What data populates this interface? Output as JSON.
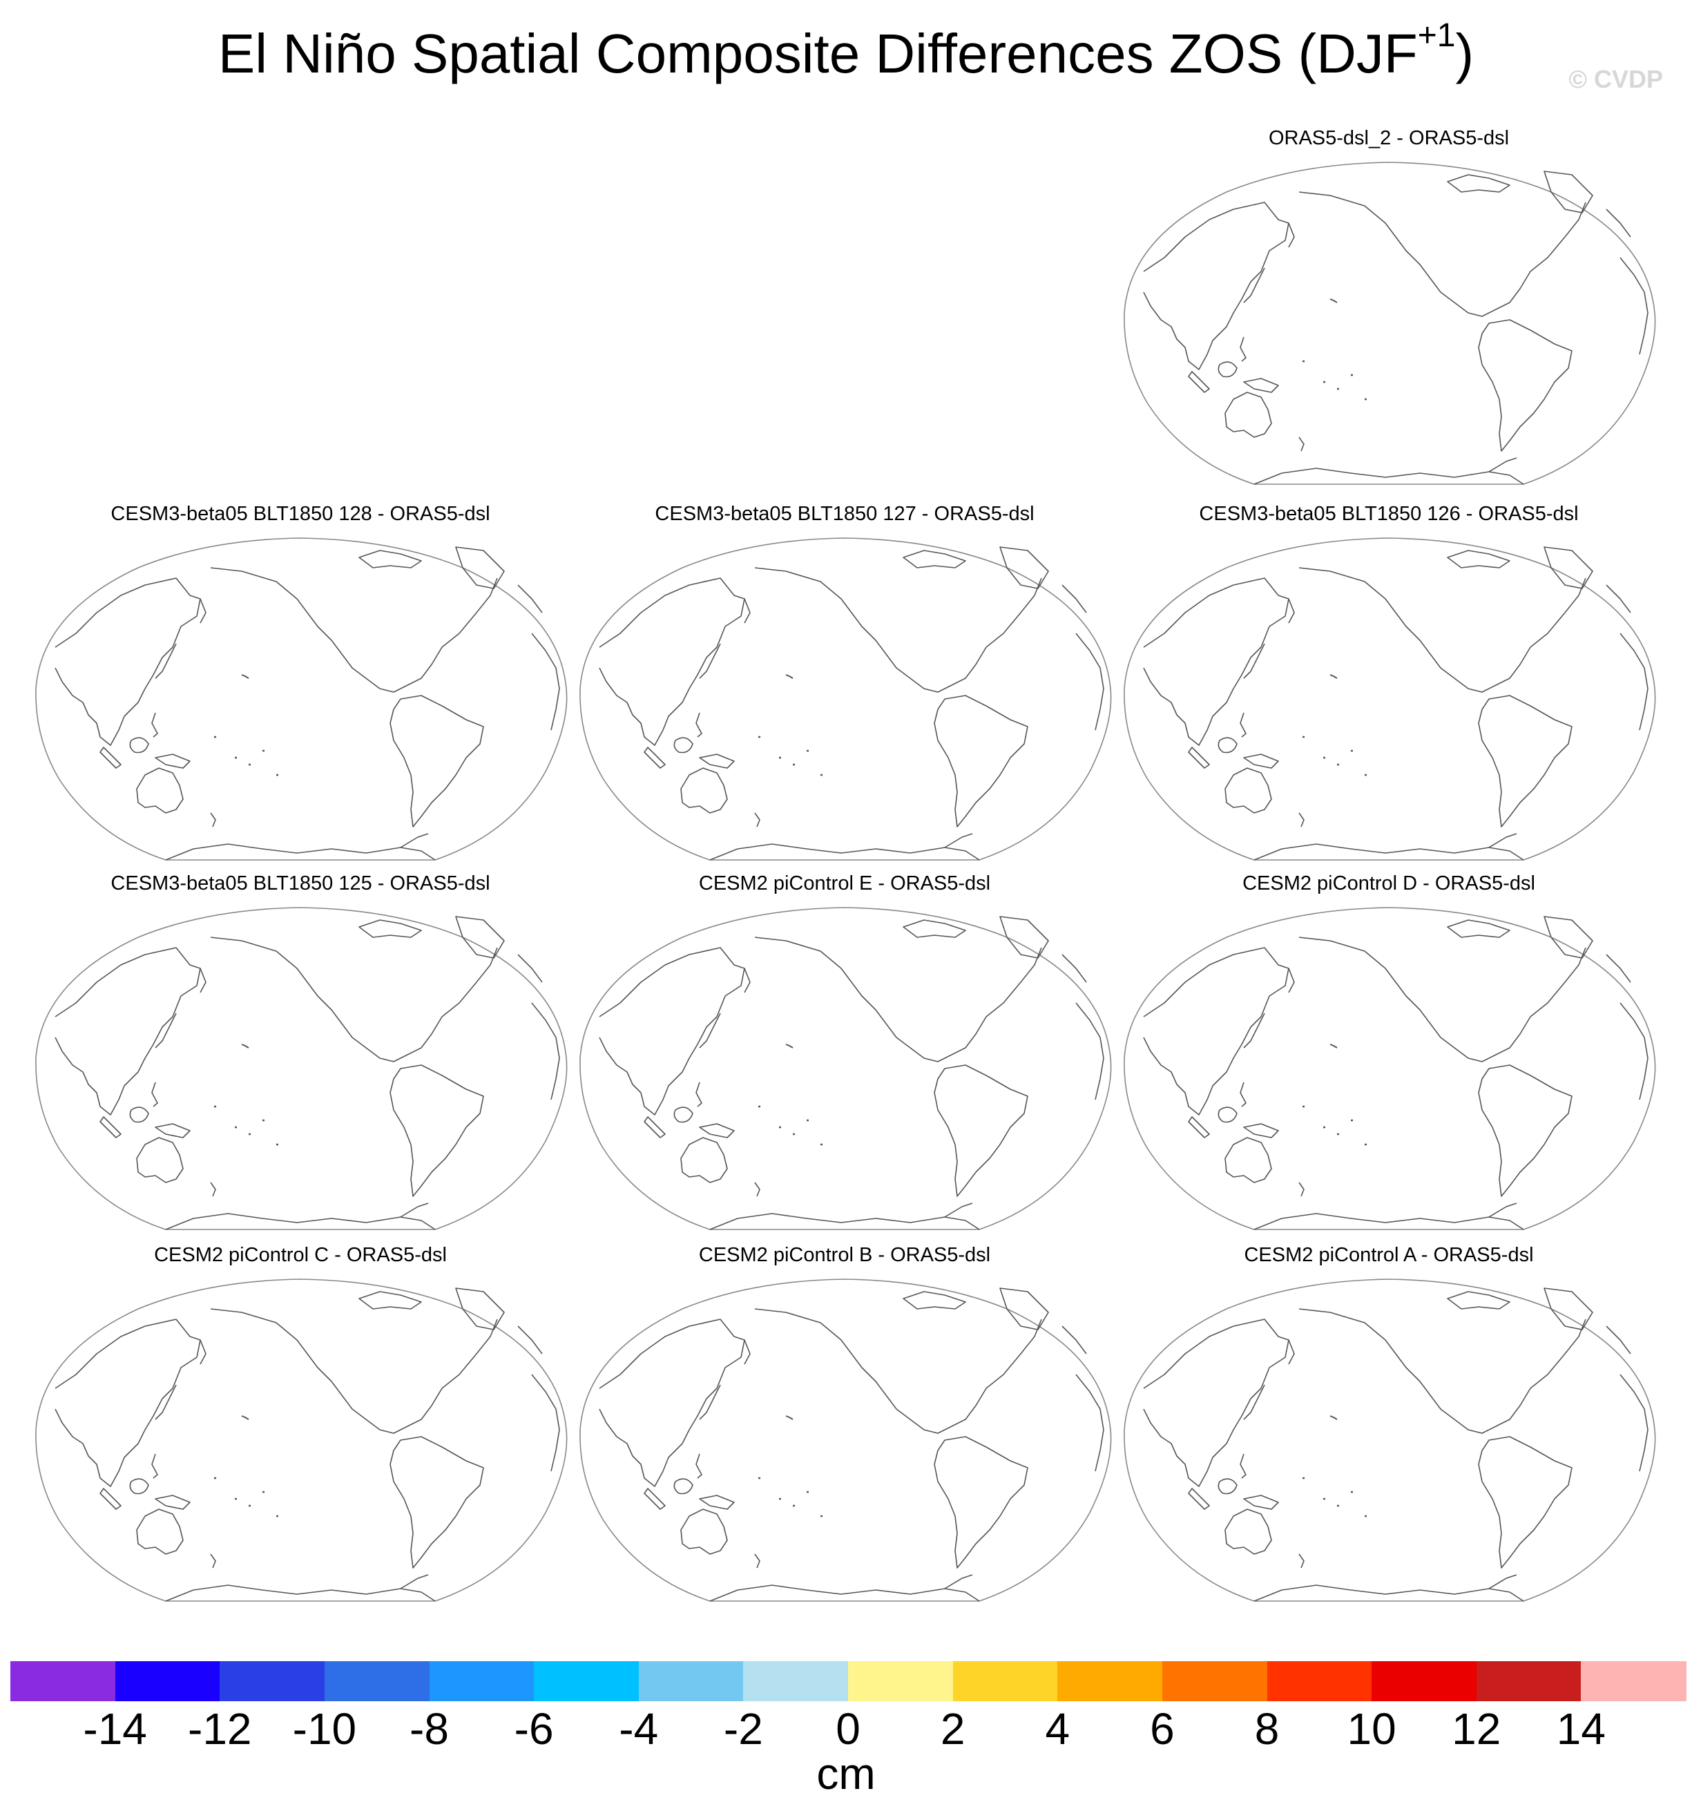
{
  "figure": {
    "title": "El Niño Spatial Composite Differences ZOS (DJF",
    "title_superscript": "+1",
    "title_close": ")",
    "watermark": "© CVDP",
    "units": "cm"
  },
  "panels": [
    {
      "title": "ORAS5-dsl_2 - ORAS5-dsl",
      "row": 0,
      "col": 2
    },
    {
      "title": "CESM3-beta05 BLT1850 128 - ORAS5-dsl",
      "row": 1,
      "col": 0
    },
    {
      "title": "CESM3-beta05 BLT1850 127 - ORAS5-dsl",
      "row": 1,
      "col": 1
    },
    {
      "title": "CESM3-beta05 BLT1850 126 - ORAS5-dsl",
      "row": 1,
      "col": 2
    },
    {
      "title": "CESM3-beta05 BLT1850 125 - ORAS5-dsl",
      "row": 2,
      "col": 0
    },
    {
      "title": "CESM2 piControl E - ORAS5-dsl",
      "row": 2,
      "col": 1
    },
    {
      "title": "CESM2 piControl D - ORAS5-dsl",
      "row": 2,
      "col": 2
    },
    {
      "title": "CESM2 piControl C - ORAS5-dsl",
      "row": 3,
      "col": 0
    },
    {
      "title": "CESM2 piControl B - ORAS5-dsl",
      "row": 3,
      "col": 1
    },
    {
      "title": "CESM2 piControl A - ORAS5-dsl",
      "row": 3,
      "col": 2
    }
  ],
  "colorbar": {
    "colors": [
      "#8a2be2",
      "#1a00ff",
      "#2a3fe6",
      "#2e6fe8",
      "#1e96ff",
      "#00c0ff",
      "#73c8f2",
      "#b4e0f0",
      "#fff58c",
      "#ffd428",
      "#ffaa00",
      "#ff7300",
      "#ff3200",
      "#eb0000",
      "#c81e1e",
      "#ffb4b4"
    ],
    "ticks": [
      "-14",
      "-12",
      "-10",
      "-8",
      "-6",
      "-4",
      "-2",
      "0",
      "2",
      "4",
      "6",
      "8",
      "10",
      "12",
      "14"
    ]
  }
}
